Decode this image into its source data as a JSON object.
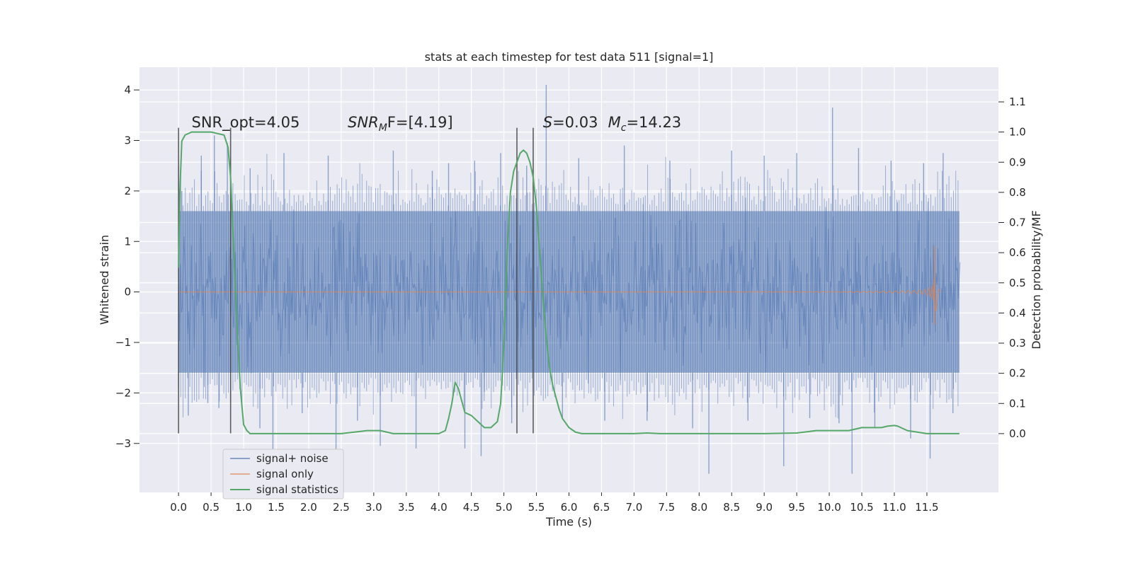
{
  "chart_data": {
    "type": "line",
    "title": "stats at each timestep for test data 511 [signal=1]",
    "xlabel": "Time (s)",
    "ylabel": "Whitened strain",
    "ylabel_right": "Detection probability/MF",
    "xlim": [
      -0.6,
      12.6
    ],
    "ylim_left": [
      -3.97,
      4.45
    ],
    "ylim_right": [
      -0.195,
      1.215
    ],
    "x_ticks": [
      0.0,
      0.5,
      1.0,
      1.5,
      2.0,
      2.5,
      3.0,
      3.5,
      4.0,
      4.5,
      5.0,
      5.5,
      6.0,
      6.5,
      7.0,
      7.5,
      8.0,
      8.5,
      9.0,
      9.5,
      10.0,
      10.5,
      11.0,
      11.5
    ],
    "x_tick_labels": [
      "0.0",
      "0.5",
      "1.0",
      "1.5",
      "2.0",
      "2.5",
      "3.0",
      "3.5",
      "4.0",
      "4.5",
      "5.0",
      "5.5",
      "6.0",
      "6.5",
      "7.0",
      "7.5",
      "8.0",
      "8.5",
      "9.0",
      "9.5",
      "10.0",
      "10.5",
      "11.0",
      "11.5"
    ],
    "y_ticks_left": [
      -3,
      -2,
      -1,
      0,
      1,
      2,
      3,
      4
    ],
    "y_tick_labels_left": [
      "−3",
      "−2",
      "−1",
      "0",
      "1",
      "2",
      "3",
      "4"
    ],
    "y_ticks_right": [
      0.0,
      0.1,
      0.2,
      0.3,
      0.4,
      0.5,
      0.6,
      0.7,
      0.8,
      0.9,
      1.0,
      1.1
    ],
    "y_tick_labels_right": [
      "0.0",
      "0.1",
      "0.2",
      "0.3",
      "0.4",
      "0.5",
      "0.6",
      "0.7",
      "0.8",
      "0.9",
      "1.0",
      "1.1"
    ],
    "grid": true,
    "legend_position": "lower-left",
    "annotations": {
      "snr_opt": "SNR_opt=4.05",
      "snr_mf_name": "SNR",
      "snr_mf_sub": "M",
      "snr_mf_rest": "F=[4.19]",
      "s_name": "S",
      "s_rest": "=0.03",
      "mc_name": "M",
      "mc_sub": "c",
      "mc_rest": "=14.23"
    },
    "series": [
      {
        "name": "signal+ noise",
        "color": "#4c72b0",
        "axis": "left",
        "kind": "dense-noise",
        "x_range": [
          0.0,
          12.0
        ],
        "band": [
          -1.6,
          1.6
        ],
        "spikes": [
          [
            0.05,
            2.0
          ],
          [
            0.15,
            -2.45
          ],
          [
            0.35,
            2.7
          ],
          [
            0.45,
            -2.2
          ],
          [
            0.55,
            3.1
          ],
          [
            0.62,
            -2.3
          ],
          [
            0.75,
            2.95
          ],
          [
            1.1,
            2.45
          ],
          [
            1.25,
            -2.7
          ],
          [
            1.45,
            -3.15
          ],
          [
            1.62,
            2.75
          ],
          [
            1.9,
            -2.4
          ],
          [
            2.3,
            2.7
          ],
          [
            2.42,
            -3.35
          ],
          [
            2.75,
            -2.55
          ],
          [
            3.1,
            -3.05
          ],
          [
            3.3,
            2.8
          ],
          [
            3.65,
            -3.1
          ],
          [
            3.9,
            2.4
          ],
          [
            4.15,
            2.55
          ],
          [
            4.4,
            -3.1
          ],
          [
            4.55,
            2.6
          ],
          [
            4.65,
            -3.25
          ],
          [
            4.95,
            2.75
          ],
          [
            5.12,
            -2.6
          ],
          [
            5.35,
            2.5
          ],
          [
            5.65,
            4.1
          ],
          [
            5.9,
            -2.5
          ],
          [
            6.15,
            2.65
          ],
          [
            6.55,
            -2.55
          ],
          [
            6.85,
            2.9
          ],
          [
            7.2,
            -2.55
          ],
          [
            7.55,
            2.6
          ],
          [
            7.9,
            -2.7
          ],
          [
            8.15,
            -3.6
          ],
          [
            8.5,
            2.8
          ],
          [
            8.75,
            -2.55
          ],
          [
            9.0,
            2.7
          ],
          [
            9.3,
            -3.45
          ],
          [
            9.5,
            2.75
          ],
          [
            9.7,
            -2.5
          ],
          [
            10.05,
            3.65
          ],
          [
            10.15,
            -2.6
          ],
          [
            10.35,
            -3.6
          ],
          [
            10.45,
            2.85
          ],
          [
            10.7,
            -2.7
          ],
          [
            10.95,
            2.6
          ],
          [
            11.25,
            -2.9
          ],
          [
            11.45,
            2.55
          ],
          [
            11.55,
            -3.3
          ],
          [
            11.75,
            2.75
          ],
          [
            11.9,
            -2.4
          ]
        ]
      },
      {
        "name": "signal only",
        "color": "#dd8452",
        "axis": "left",
        "kind": "chirp",
        "x_range": [
          0.0,
          11.72
        ],
        "peak_time": 11.62,
        "peak_amplitude": 0.9,
        "peak_min": -0.65
      },
      {
        "name": "signal statistics",
        "color": "#55a868",
        "axis": "right",
        "kind": "line",
        "x": [
          0.0,
          0.02,
          0.05,
          0.1,
          0.2,
          0.3,
          0.5,
          0.7,
          0.76,
          0.8,
          0.82,
          0.85,
          0.88,
          0.9,
          0.95,
          1.0,
          1.05,
          1.1,
          1.2,
          1.5,
          2.0,
          2.5,
          2.9,
          3.0,
          3.1,
          3.3,
          3.6,
          4.0,
          4.1,
          4.15,
          4.2,
          4.25,
          4.3,
          4.35,
          4.4,
          4.5,
          4.6,
          4.7,
          4.8,
          4.9,
          4.95,
          5.0,
          5.05,
          5.1,
          5.15,
          5.2,
          5.25,
          5.3,
          5.35,
          5.4,
          5.45,
          5.5,
          5.55,
          5.6,
          5.65,
          5.7,
          5.75,
          5.8,
          5.85,
          5.9,
          6.0,
          6.1,
          6.2,
          6.5,
          7.0,
          7.2,
          7.4,
          8.0,
          9.0,
          9.5,
          9.8,
          10.0,
          10.3,
          10.5,
          10.8,
          10.9,
          11.0,
          11.05,
          11.1,
          11.2,
          11.5,
          12.0
        ],
        "y": [
          0.55,
          0.8,
          0.97,
          0.99,
          1.0,
          1.0,
          1.0,
          0.99,
          0.95,
          0.85,
          0.75,
          0.6,
          0.45,
          0.35,
          0.15,
          0.03,
          0.01,
          0.0,
          0.0,
          0.0,
          0.0,
          0.0,
          0.01,
          0.01,
          0.01,
          0.0,
          0.0,
          0.0,
          0.01,
          0.05,
          0.1,
          0.17,
          0.15,
          0.11,
          0.07,
          0.06,
          0.04,
          0.02,
          0.02,
          0.04,
          0.1,
          0.3,
          0.6,
          0.8,
          0.87,
          0.9,
          0.93,
          0.94,
          0.93,
          0.9,
          0.85,
          0.75,
          0.6,
          0.45,
          0.32,
          0.22,
          0.16,
          0.12,
          0.08,
          0.05,
          0.02,
          0.005,
          0.0,
          0.0,
          0.0,
          0.002,
          0.0,
          0.0,
          0.0,
          0.002,
          0.01,
          0.01,
          0.01,
          0.02,
          0.02,
          0.025,
          0.027,
          0.025,
          0.02,
          0.01,
          0.0,
          0.0
        ]
      }
    ],
    "vertical_markers": [
      {
        "x": 0.0,
        "y_range": [
          -2.8,
          3.25
        ]
      },
      {
        "x": 0.8,
        "y_range": [
          -2.8,
          3.25
        ]
      },
      {
        "x": 5.2,
        "y_range": [
          -2.8,
          3.25
        ]
      },
      {
        "x": 5.45,
        "y_range": [
          -2.8,
          3.25
        ]
      }
    ]
  }
}
